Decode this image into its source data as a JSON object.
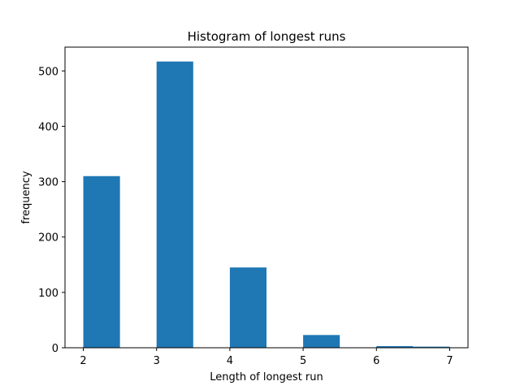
{
  "chart_data": {
    "type": "bar",
    "title": "Histogram of longest runs",
    "xlabel": "Length of longest run",
    "ylabel": "frequency",
    "bins": [
      {
        "start": 2.0,
        "end": 2.5,
        "value": 310
      },
      {
        "start": 3.0,
        "end": 3.5,
        "value": 517
      },
      {
        "start": 4.0,
        "end": 4.5,
        "value": 145
      },
      {
        "start": 5.0,
        "end": 5.5,
        "value": 23
      },
      {
        "start": 6.0,
        "end": 6.5,
        "value": 3
      },
      {
        "start": 6.5,
        "end": 7.0,
        "value": 2
      }
    ],
    "xlim": [
      1.75,
      7.25
    ],
    "ylim": [
      0,
      543
    ],
    "xticks": [
      2,
      3,
      4,
      5,
      6,
      7
    ],
    "yticks": [
      0,
      100,
      200,
      300,
      400,
      500
    ],
    "bar_color": "#1f77b4",
    "grid": false
  }
}
